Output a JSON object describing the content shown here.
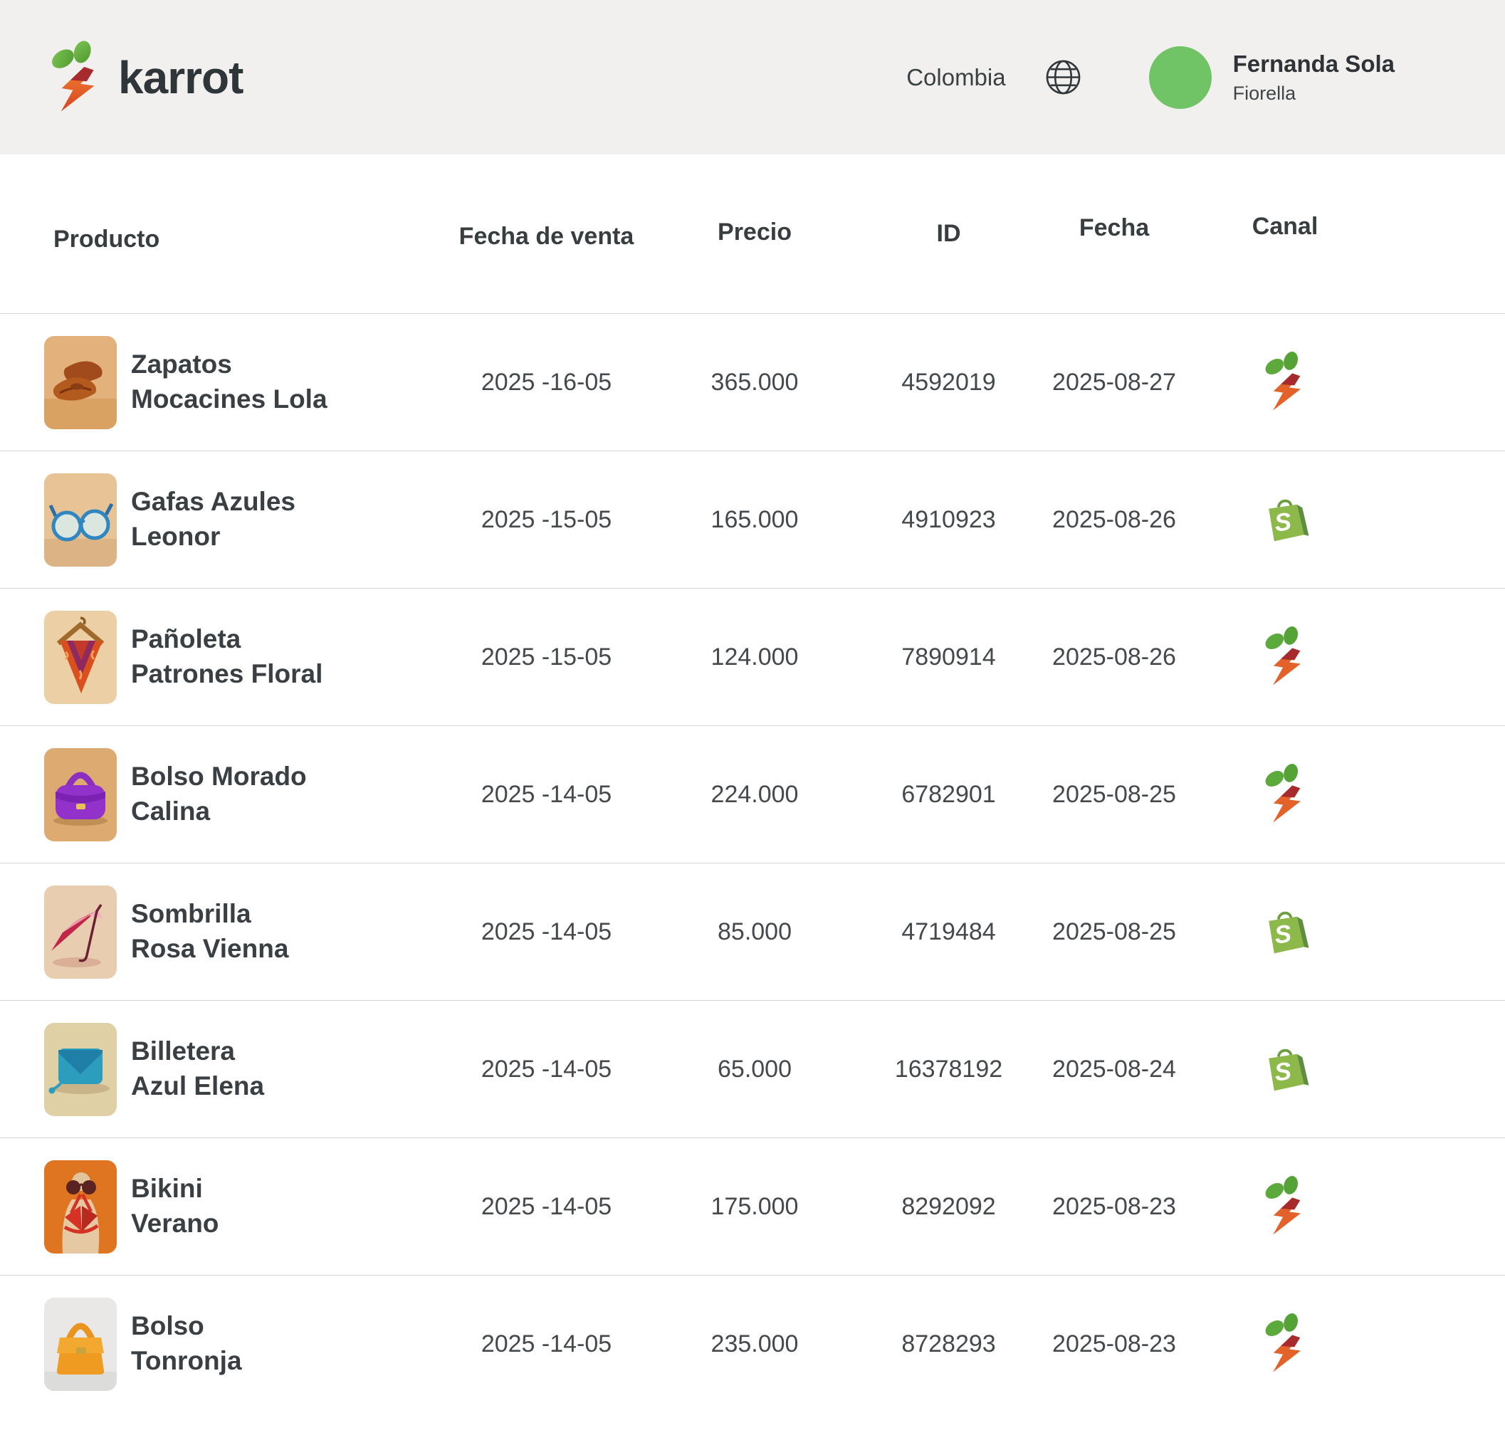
{
  "header": {
    "brand": "karrot",
    "country": "Colombia",
    "user_name": "Fernanda Sola",
    "user_subtitle": "Fiorella"
  },
  "icons": {
    "globe": "globe-icon",
    "karrot_channel": "karrot-channel-icon",
    "shopify_channel": "shopify-channel-icon"
  },
  "colors": {
    "topbar_bg": "#f1f0ee",
    "avatar_green": "#70c465",
    "leaf_green": "#5ca93c",
    "carrot_orange": "#e2622a",
    "carrot_dark_red": "#a72a2c",
    "shopify_green": "#8db84a",
    "shopify_dark_green": "#5e8e3e",
    "divider": "#d8d7d5",
    "text_dark": "#3a3f43"
  },
  "table": {
    "columns": [
      "Producto",
      "Fecha de venta",
      "Precio",
      "ID",
      "Fecha",
      "Canal"
    ],
    "rows": [
      {
        "name": "Zapatos\nMocacines Lola",
        "sale_date": "2025 -16-05",
        "price": "365.000",
        "id": "4592019",
        "date": "2025-08-27",
        "channel": "karrot",
        "image": "loafers-photo"
      },
      {
        "name": "Gafas Azules\nLeonor",
        "sale_date": "2025 -15-05",
        "price": "165.000",
        "id": "4910923",
        "date": "2025-08-26",
        "channel": "shopify",
        "image": "blue-glasses-photo"
      },
      {
        "name": "Pañoleta\nPatrones Floral",
        "sale_date": "2025 -15-05",
        "price": "124.000",
        "id": "7890914",
        "date": "2025-08-26",
        "channel": "karrot",
        "image": "floral-scarf-photo"
      },
      {
        "name": "Bolso Morado\nCalina",
        "sale_date": "2025 -14-05",
        "price": "224.000",
        "id": "6782901",
        "date": "2025-08-25",
        "channel": "karrot",
        "image": "purple-handbag-photo"
      },
      {
        "name": "Sombrilla\nRosa Vienna",
        "sale_date": "2025 -14-05",
        "price": "85.000",
        "id": "4719484",
        "date": "2025-08-25",
        "channel": "shopify",
        "image": "pink-umbrella-photo"
      },
      {
        "name": "Billetera\nAzul Elena",
        "sale_date": "2025 -14-05",
        "price": "65.000",
        "id": "16378192",
        "date": "2025-08-24",
        "channel": "shopify",
        "image": "blue-wallet-photo"
      },
      {
        "name": "Bikini\nVerano",
        "sale_date": "2025 -14-05",
        "price": "175.000",
        "id": "8292092",
        "date": "2025-08-23",
        "channel": "karrot",
        "image": "red-bikini-photo"
      },
      {
        "name": "Bolso\nTonronja",
        "sale_date": "2025 -14-05",
        "price": "235.000",
        "id": "8728293",
        "date": "2025-08-23",
        "channel": "karrot",
        "image": "orange-handbag-photo"
      }
    ]
  }
}
